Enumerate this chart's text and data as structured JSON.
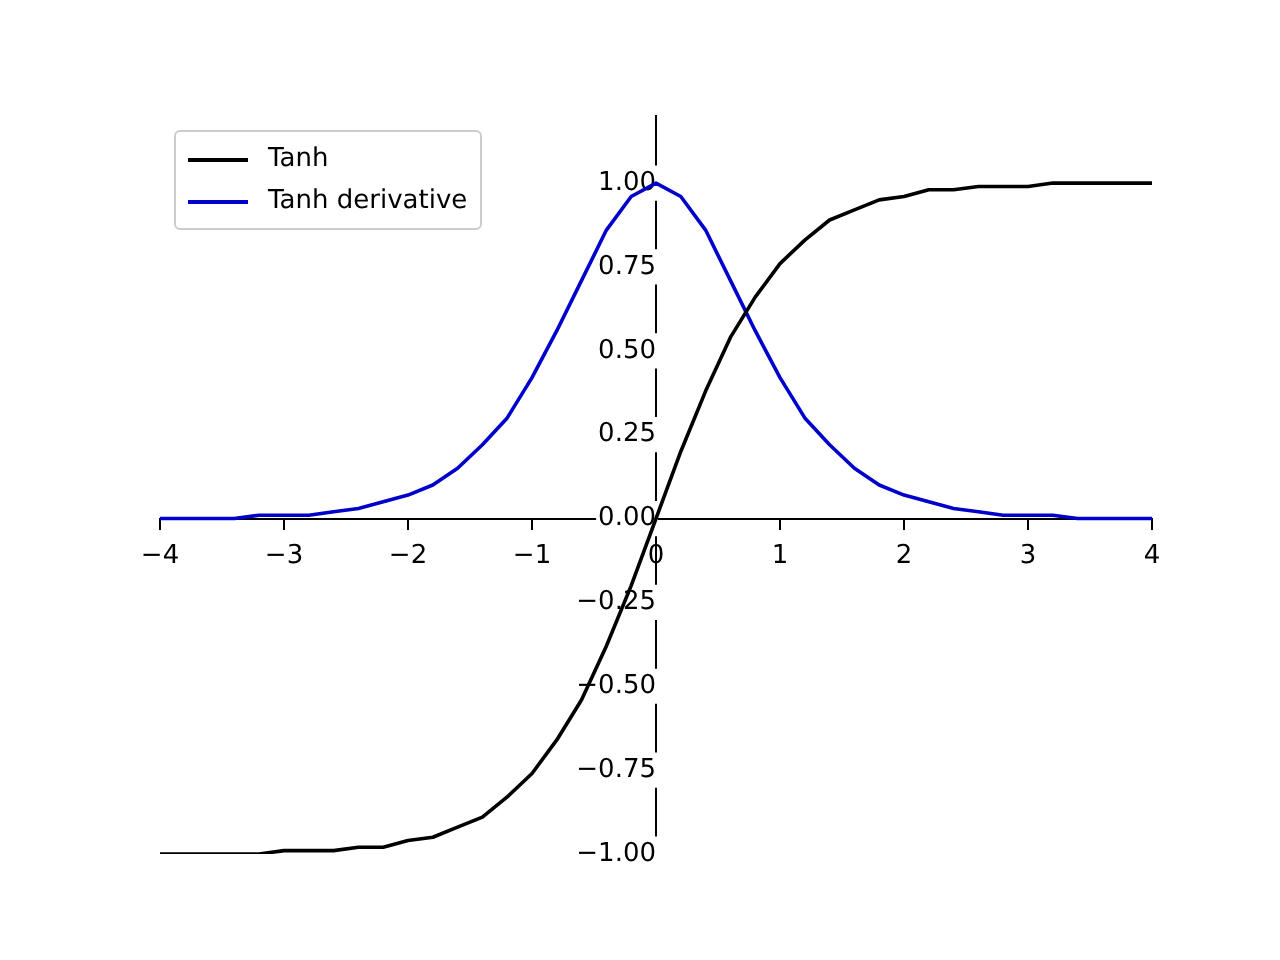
{
  "chart_data": {
    "type": "line",
    "x": [
      -4,
      -3.8,
      -3.6,
      -3.4,
      -3.2,
      -3,
      -2.8,
      -2.6,
      -2.4,
      -2.2,
      -2,
      -1.8,
      -1.6,
      -1.4,
      -1.2,
      -1,
      -0.8,
      -0.6,
      -0.4,
      -0.2,
      0,
      0.2,
      0.4,
      0.6,
      0.8,
      1,
      1.2,
      1.4,
      1.6,
      1.8,
      2,
      2.2,
      2.4,
      2.6,
      2.8,
      3,
      3.2,
      3.4,
      3.6,
      3.8,
      4
    ],
    "series": [
      {
        "name": "Tanh",
        "color": "#000000",
        "values": [
          -1,
          -1,
          -1,
          -1,
          -1,
          -0.99,
          -0.99,
          -0.99,
          -0.98,
          -0.98,
          -0.96,
          -0.95,
          -0.92,
          -0.89,
          -0.83,
          -0.76,
          -0.66,
          -0.54,
          -0.38,
          -0.2,
          0,
          0.2,
          0.38,
          0.54,
          0.66,
          0.76,
          0.83,
          0.89,
          0.92,
          0.95,
          0.96,
          0.98,
          0.98,
          0.99,
          0.99,
          0.99,
          1,
          1,
          1,
          1,
          1
        ]
      },
      {
        "name": "Tanh derivative",
        "color": "#0000cc",
        "values": [
          0,
          0,
          0,
          0,
          0.01,
          0.01,
          0.01,
          0.02,
          0.03,
          0.05,
          0.07,
          0.1,
          0.15,
          0.22,
          0.3,
          0.42,
          0.56,
          0.71,
          0.86,
          0.96,
          1,
          0.96,
          0.86,
          0.71,
          0.56,
          0.42,
          0.3,
          0.22,
          0.15,
          0.1,
          0.07,
          0.05,
          0.03,
          0.02,
          0.01,
          0.01,
          0.01,
          0,
          0,
          0,
          0
        ]
      }
    ],
    "xlim": [
      -4,
      4
    ],
    "ylim": [
      -1,
      1.2
    ],
    "xticks": [
      {
        "value": -4,
        "label": "−4"
      },
      {
        "value": -3,
        "label": "−3"
      },
      {
        "value": -2,
        "label": "−2"
      },
      {
        "value": -1,
        "label": "−1"
      },
      0,
      1,
      2,
      3,
      4
    ],
    "yticks": [
      {
        "value": -1,
        "label": "−1.00"
      },
      {
        "value": -0.75,
        "label": "−0.75"
      },
      {
        "value": -0.5,
        "label": "−0.50"
      },
      {
        "value": -0.25,
        "label": "−0.25"
      },
      {
        "value": 0,
        "label": "0.00"
      },
      {
        "value": 0.25,
        "label": "0.25"
      },
      {
        "value": 0.5,
        "label": "0.50"
      },
      {
        "value": 0.75,
        "label": "0.75"
      },
      {
        "value": 1,
        "label": "1.00"
      }
    ],
    "grid": false,
    "legend": "top left",
    "marker": "none",
    "line_style": "solid"
  }
}
